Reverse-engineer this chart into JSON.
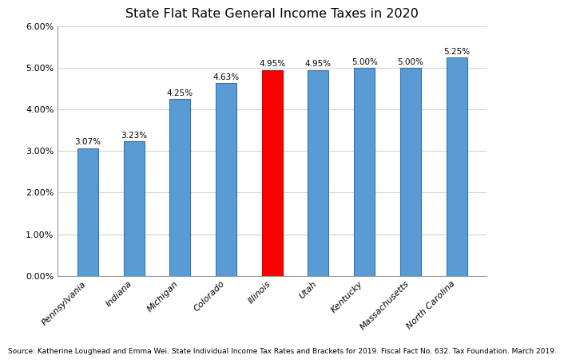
{
  "title": "State Flat Rate General Income Taxes in 2020",
  "categories": [
    "Pennsylvania",
    "Indiana",
    "Michigan",
    "Colorado",
    "Illinois",
    "Utah",
    "Kentucky",
    "Massachusetts",
    "North Carolina"
  ],
  "values": [
    3.07,
    3.23,
    4.25,
    4.63,
    4.95,
    4.95,
    5.0,
    5.0,
    5.25
  ],
  "labels": [
    "3.07%",
    "3.23%",
    "4.25%",
    "4.63%",
    "4.95%",
    "4.95%",
    "5.00%",
    "5.00%",
    "5.25%"
  ],
  "bar_colors": [
    "#5B9BD5",
    "#5B9BD5",
    "#5B9BD5",
    "#5B9BD5",
    "#FF0000",
    "#5B9BD5",
    "#5B9BD5",
    "#5B9BD5",
    "#5B9BD5"
  ],
  "bar_edge_colors": [
    "#2E75B6",
    "#2E75B6",
    "#2E75B6",
    "#2E75B6",
    "#CC0000",
    "#2E75B6",
    "#2E75B6",
    "#2E75B6",
    "#2E75B6"
  ],
  "ylim": [
    0,
    6.0
  ],
  "yticks": [
    0.0,
    1.0,
    2.0,
    3.0,
    4.0,
    5.0,
    6.0
  ],
  "ytick_labels": [
    "0.00%",
    "1.00%",
    "2.00%",
    "3.00%",
    "4.00%",
    "5.00%",
    "6.00%"
  ],
  "source_text": "Source: Katherine Loughead and Emma Wei. State Individual Income Tax Rates and Brackets for 2019. Fiscal Fact No. 632. Tax Foundation. March 2019.",
  "title_fontsize": 11.5,
  "label_fontsize": 7.5,
  "tick_fontsize": 8,
  "source_fontsize": 6.5,
  "background_color": "#FFFFFF",
  "grid_color": "#D3D3D3",
  "bar_width": 0.45
}
